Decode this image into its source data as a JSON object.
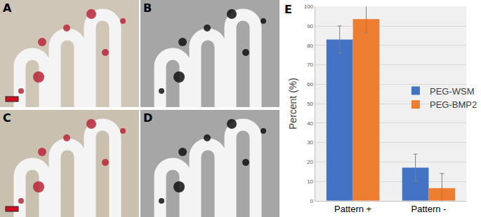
{
  "panel_labels": [
    "A",
    "B",
    "C",
    "D",
    "E"
  ],
  "chart_data": {
    "type": "bar",
    "categories": [
      "Pattern +",
      "Pattern -"
    ],
    "series": [
      {
        "name": "PEG-WSM",
        "color": "#4472c4",
        "values": [
          83,
          17
        ],
        "errors": [
          7,
          7
        ]
      },
      {
        "name": "PEG-BMP2",
        "color": "#ed7d31",
        "values": [
          93.5,
          6.5
        ],
        "errors": [
          7,
          7.5
        ]
      }
    ],
    "y_label": "Percent (%)",
    "ylim": [
      0,
      100
    ],
    "yticks": [
      0,
      10,
      20,
      30,
      40,
      50,
      60,
      70,
      80,
      90,
      100
    ],
    "grid": true,
    "legend": "right"
  }
}
